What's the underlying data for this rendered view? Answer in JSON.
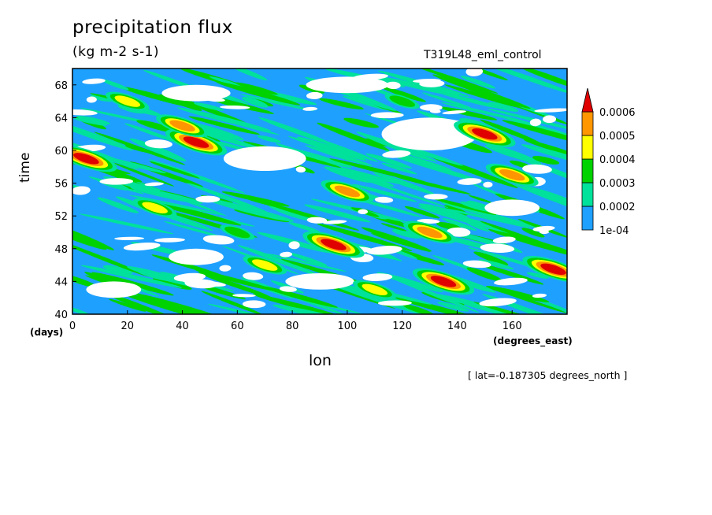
{
  "chart_data": {
    "type": "heatmap",
    "title": "precipitation flux",
    "units": "(kg m-2 s-1)",
    "run_label": "T319L48_eml_control",
    "xlabel": "lon",
    "xunit": "(degrees_east)",
    "ylabel": "time",
    "yunit": "(days)",
    "coordinate_note": "[ lat=-0.187305 degrees_north ]",
    "xlim": [
      0,
      180
    ],
    "ylim": [
      40,
      70
    ],
    "x_ticks": [
      0,
      20,
      40,
      60,
      80,
      100,
      120,
      140,
      160
    ],
    "y_ticks": [
      40,
      44,
      48,
      52,
      56,
      60,
      64,
      68
    ],
    "x_tick_labels": [
      "0",
      "20",
      "40",
      "60",
      "80",
      "100",
      "120",
      "140",
      "160"
    ],
    "y_tick_labels": [
      "40",
      "44",
      "48",
      "52",
      "56",
      "60",
      "64",
      "68"
    ],
    "grid": false,
    "legend_placement": "right",
    "colorbar": {
      "labels": [
        "1e-04",
        "0.0002",
        "0.0003",
        "0.0004",
        "0.0005",
        "0.0006"
      ],
      "levels": [
        0.0001,
        0.0002,
        0.0003,
        0.0004,
        0.0005,
        0.0006
      ],
      "colors": [
        "#1ea0ff",
        "#00e19b",
        "#00d200",
        "#ffff00",
        "#ff9600",
        "#e10000"
      ],
      "extend": "max"
    },
    "features": [
      {
        "lon": 45,
        "day": 61,
        "level": 6
      },
      {
        "lon": 40,
        "day": 63,
        "level": 5
      },
      {
        "lon": 5,
        "day": 59,
        "level": 6
      },
      {
        "lon": 150,
        "day": 62,
        "level": 6
      },
      {
        "lon": 95,
        "day": 48.5,
        "level": 6
      },
      {
        "lon": 135,
        "day": 44,
        "level": 6
      },
      {
        "lon": 175,
        "day": 45.5,
        "level": 6
      },
      {
        "lon": 100,
        "day": 55,
        "level": 5
      },
      {
        "lon": 130,
        "day": 50,
        "level": 5
      },
      {
        "lon": 160,
        "day": 57,
        "level": 5
      },
      {
        "lon": 30,
        "day": 53,
        "level": 4
      },
      {
        "lon": 70,
        "day": 46,
        "level": 4
      },
      {
        "lon": 110,
        "day": 43,
        "level": 4
      },
      {
        "lon": 20,
        "day": 66,
        "level": 4
      },
      {
        "lon": 120,
        "day": 66,
        "level": 3
      },
      {
        "lon": 60,
        "day": 50,
        "level": 3
      }
    ],
    "dry_areas": [
      {
        "lon": 70,
        "day": 59,
        "w": 30,
        "h": 3
      },
      {
        "lon": 130,
        "day": 62,
        "w": 35,
        "h": 4
      },
      {
        "lon": 45,
        "day": 67,
        "w": 25,
        "h": 2
      },
      {
        "lon": 90,
        "day": 44,
        "w": 25,
        "h": 2
      },
      {
        "lon": 15,
        "day": 43,
        "w": 20,
        "h": 2
      },
      {
        "lon": 160,
        "day": 53,
        "w": 20,
        "h": 2
      },
      {
        "lon": 100,
        "day": 68,
        "w": 30,
        "h": 2
      },
      {
        "lon": 45,
        "day": 47,
        "w": 20,
        "h": 2
      }
    ]
  }
}
